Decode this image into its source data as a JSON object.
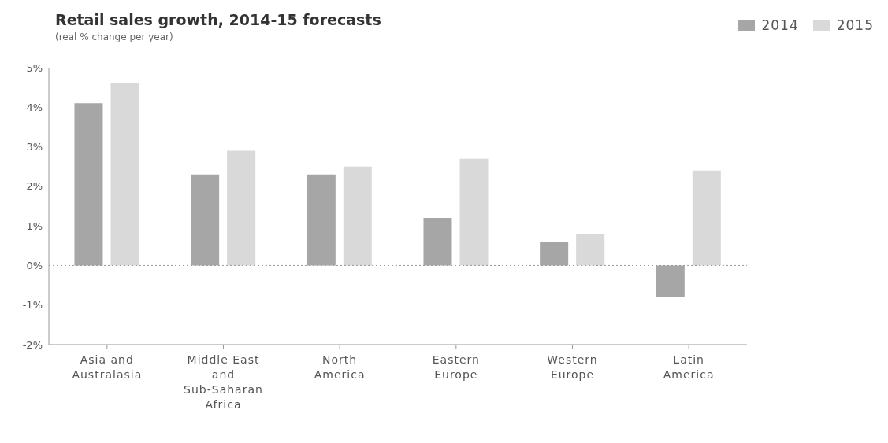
{
  "chart_data": {
    "type": "bar",
    "title": "Retail sales growth, 2014-15 forecasts",
    "subtitle": "(real % change per year)",
    "categories": [
      "Asia and Australasia",
      "Middle East and Sub-Saharan Africa",
      "North America",
      "Eastern Europe",
      "Western Europe",
      "Latin America"
    ],
    "series": [
      {
        "name": "2014",
        "color": "#a6a6a6",
        "values": [
          4.1,
          2.3,
          2.3,
          1.2,
          0.6,
          -0.8
        ]
      },
      {
        "name": "2015",
        "color": "#d9d9d9",
        "values": [
          4.6,
          2.9,
          2.5,
          2.7,
          0.8,
          2.4
        ]
      }
    ],
    "ylim": [
      -2,
      5
    ],
    "yticks": [
      {
        "value": -2,
        "label": "-2%"
      },
      {
        "value": -1,
        "label": "-1%"
      },
      {
        "value": 0,
        "label": "0%"
      },
      {
        "value": 1,
        "label": "1%"
      },
      {
        "value": 2,
        "label": "2%"
      },
      {
        "value": 3,
        "label": "3%"
      },
      {
        "value": 4,
        "label": "4%"
      },
      {
        "value": 5,
        "label": "5%"
      }
    ],
    "ref_lines": [
      {
        "axis": "y",
        "value": 0,
        "color": "#999999",
        "line_style": "dotted"
      }
    ],
    "grid": false,
    "legend": "top right"
  }
}
